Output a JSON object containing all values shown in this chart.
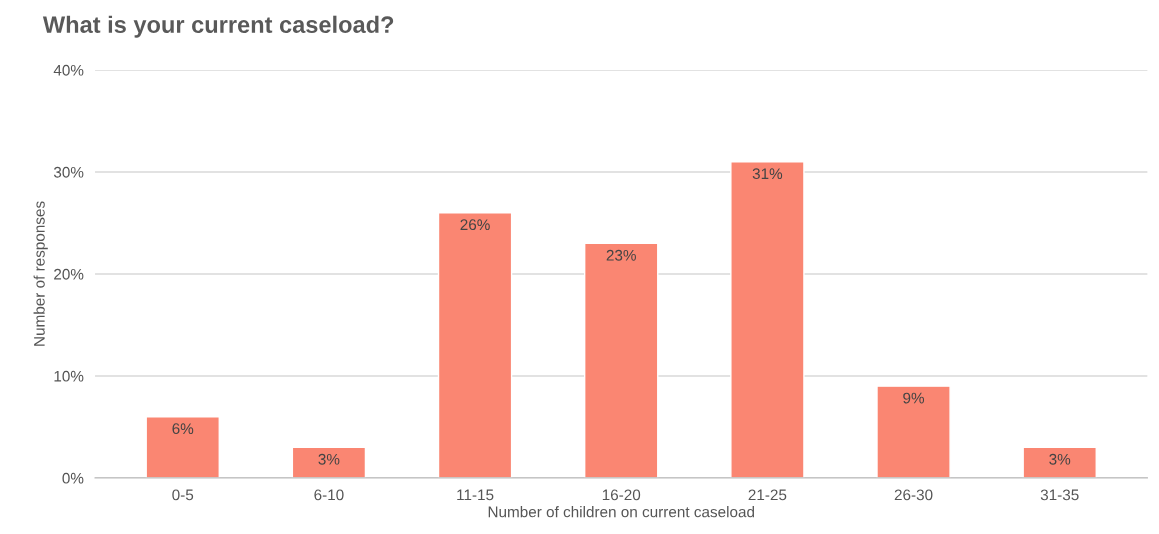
{
  "chart_data": {
    "type": "bar",
    "title": "What is your current caseload?",
    "xlabel": "Number of children on current caseload",
    "ylabel": "Number of responses",
    "categories": [
      "0-5",
      "6-10",
      "11-15",
      "16-20",
      "21-25",
      "26-30",
      "31-35"
    ],
    "values": [
      6,
      3,
      26,
      23,
      31,
      9,
      3
    ],
    "value_labels": [
      "6%",
      "3%",
      "26%",
      "23%",
      "31%",
      "9%",
      "3%"
    ],
    "color": "#fa8672",
    "ylim": [
      0,
      40
    ],
    "yticks": [
      {
        "value": 0,
        "label": "0%"
      },
      {
        "value": 10,
        "label": "10%"
      },
      {
        "value": 20,
        "label": "20%"
      },
      {
        "value": 30,
        "label": "30%"
      },
      {
        "value": 40,
        "label": "40%"
      }
    ],
    "grid": "y"
  }
}
